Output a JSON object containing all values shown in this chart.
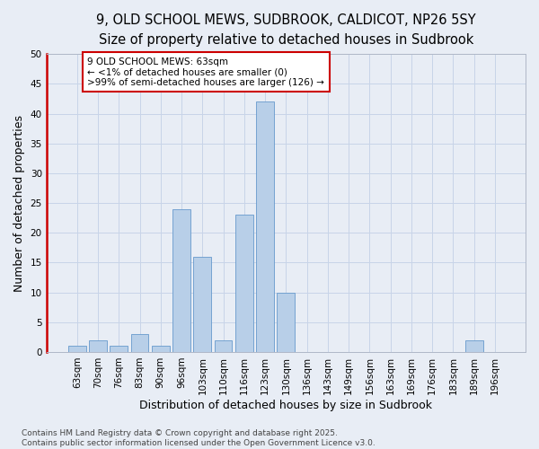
{
  "title_line1": "9, OLD SCHOOL MEWS, SUDBROOK, CALDICOT, NP26 5SY",
  "title_line2": "Size of property relative to detached houses in Sudbrook",
  "xlabel": "Distribution of detached houses by size in Sudbrook",
  "ylabel": "Number of detached properties",
  "categories": [
    "63sqm",
    "70sqm",
    "76sqm",
    "83sqm",
    "90sqm",
    "96sqm",
    "103sqm",
    "110sqm",
    "116sqm",
    "123sqm",
    "130sqm",
    "136sqm",
    "143sqm",
    "149sqm",
    "156sqm",
    "163sqm",
    "169sqm",
    "176sqm",
    "183sqm",
    "189sqm",
    "196sqm"
  ],
  "values": [
    1,
    2,
    1,
    3,
    1,
    24,
    16,
    2,
    23,
    42,
    10,
    0,
    0,
    0,
    0,
    0,
    0,
    0,
    0,
    2,
    0
  ],
  "bar_color": "#b8cfe8",
  "bar_edge_color": "#6699cc",
  "annotation_text": "9 OLD SCHOOL MEWS: 63sqm\n← <1% of detached houses are smaller (0)\n>99% of semi-detached houses are larger (126) →",
  "annotation_box_edge_color": "#cc0000",
  "annotation_box_fill": "#ffffff",
  "ylim": [
    0,
    50
  ],
  "yticks": [
    0,
    5,
    10,
    15,
    20,
    25,
    30,
    35,
    40,
    45,
    50
  ],
  "grid_color": "#c8d4e8",
  "background_color": "#e8edf5",
  "footer_text": "Contains HM Land Registry data © Crown copyright and database right 2025.\nContains public sector information licensed under the Open Government Licence v3.0.",
  "title_fontsize": 10.5,
  "subtitle_fontsize": 9.5,
  "axis_label_fontsize": 9,
  "tick_fontsize": 7.5,
  "annotation_fontsize": 7.5,
  "footer_fontsize": 6.5,
  "left_spine_color": "#cc0000",
  "other_spine_color": "#b0b8c8"
}
